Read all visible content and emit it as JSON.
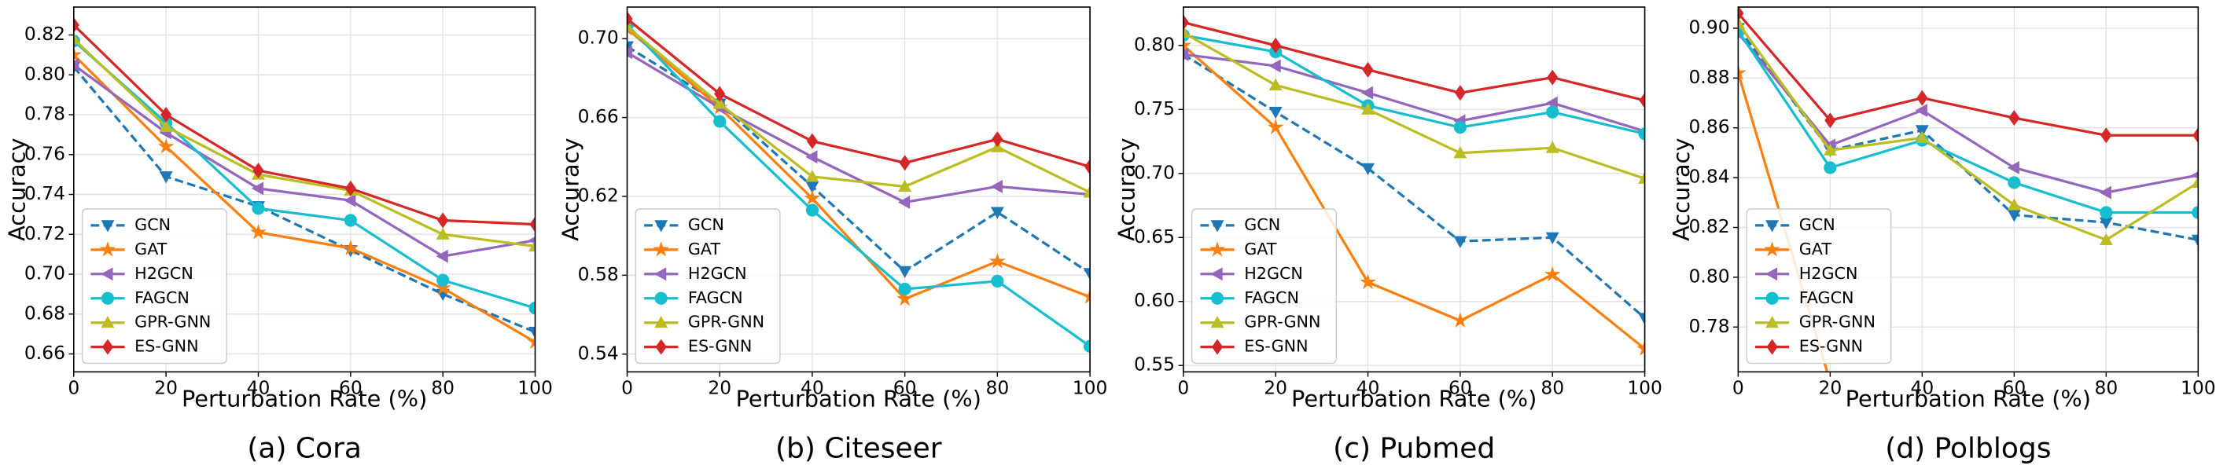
{
  "chart_data": [
    {
      "type": "line",
      "caption": "(a) Cora",
      "xlabel": "Perturbation Rate (%)",
      "ylabel": "Accuracy",
      "x": [
        0,
        20,
        40,
        60,
        80,
        100
      ],
      "xlim": [
        0,
        100
      ],
      "xticks": [
        0,
        20,
        40,
        60,
        80,
        100
      ],
      "ylim": [
        0.651,
        0.834
      ],
      "yticks": [
        0.66,
        0.68,
        {
          "value": 0.7,
          "label": "0.70"
        },
        0.72,
        0.74,
        0.76,
        0.78,
        {
          "value": 0.8,
          "label": "0.80"
        },
        0.82
      ],
      "grid": true,
      "legend": "lower left",
      "series": [
        {
          "name": "GCN",
          "color": "#1f77b4",
          "marker": "v",
          "dashed": true,
          "values": [
            0.804,
            0.749,
            0.734,
            0.712,
            0.69,
            0.671
          ]
        },
        {
          "name": "GAT",
          "color": "#ff7f0e",
          "marker": "*",
          "dashed": false,
          "values": [
            0.81,
            0.764,
            0.721,
            0.713,
            0.693,
            0.666
          ]
        },
        {
          "name": "H2GCN",
          "color": "#9467bd",
          "marker": "<",
          "dashed": false,
          "values": [
            0.805,
            0.771,
            0.743,
            0.737,
            0.709,
            0.717
          ]
        },
        {
          "name": "FAGCN",
          "color": "#17becf",
          "marker": "o",
          "dashed": false,
          "values": [
            0.817,
            0.776,
            0.733,
            0.727,
            0.697,
            0.683
          ]
        },
        {
          "name": "GPR-GNN",
          "color": "#bcbd22",
          "marker": "^",
          "dashed": false,
          "values": [
            0.818,
            0.774,
            0.75,
            0.742,
            0.72,
            0.714
          ]
        },
        {
          "name": "ES-GNN",
          "color": "#d62728",
          "marker": "D",
          "dashed": false,
          "values": [
            0.825,
            0.78,
            0.752,
            0.743,
            0.727,
            0.725
          ]
        }
      ]
    },
    {
      "type": "line",
      "caption": "(b) Citeseer",
      "xlabel": "Perturbation Rate (%)",
      "ylabel": "Accuracy",
      "x": [
        0,
        20,
        40,
        60,
        80,
        100
      ],
      "xlim": [
        0,
        100
      ],
      "xticks": [
        0,
        20,
        40,
        60,
        80,
        100
      ],
      "ylim": [
        0.531,
        0.716
      ],
      "yticks": [
        0.54,
        0.58,
        0.62,
        0.66,
        {
          "value": 0.7,
          "label": "0.70"
        }
      ],
      "grid": true,
      "legend": "lower left",
      "series": [
        {
          "name": "GCN",
          "color": "#1f77b4",
          "marker": "v",
          "dashed": true,
          "values": [
            0.696,
            0.667,
            0.625,
            0.582,
            0.612,
            0.581
          ]
        },
        {
          "name": "GAT",
          "color": "#ff7f0e",
          "marker": "*",
          "dashed": false,
          "values": [
            0.705,
            0.665,
            0.619,
            0.568,
            0.587,
            0.569
          ]
        },
        {
          "name": "H2GCN",
          "color": "#9467bd",
          "marker": "<",
          "dashed": false,
          "values": [
            0.693,
            0.665,
            0.64,
            0.617,
            0.625,
            0.621
          ]
        },
        {
          "name": "FAGCN",
          "color": "#17becf",
          "marker": "o",
          "dashed": false,
          "values": [
            0.707,
            0.658,
            0.613,
            0.573,
            0.577,
            0.544
          ]
        },
        {
          "name": "GPR-GNN",
          "color": "#bcbd22",
          "marker": "^",
          "dashed": false,
          "values": [
            0.706,
            0.667,
            0.63,
            0.625,
            0.645,
            0.622
          ]
        },
        {
          "name": "ES-GNN",
          "color": "#d62728",
          "marker": "D",
          "dashed": false,
          "values": [
            0.71,
            0.672,
            0.648,
            0.637,
            0.649,
            0.635
          ]
        }
      ]
    },
    {
      "type": "line",
      "caption": "(c) Pubmed",
      "xlabel": "Perturbation Rate (%)",
      "ylabel": "Accuracy",
      "x": [
        0,
        20,
        40,
        60,
        80,
        100
      ],
      "xlim": [
        0,
        100
      ],
      "xticks": [
        0,
        20,
        40,
        60,
        80,
        100
      ],
      "ylim": [
        0.545,
        0.83
      ],
      "yticks": [
        0.55,
        {
          "value": 0.6,
          "label": "0.60"
        },
        0.65,
        {
          "value": 0.7,
          "label": "0.70"
        },
        0.75,
        {
          "value": 0.8,
          "label": "0.80"
        }
      ],
      "grid": true,
      "legend": "lower left",
      "series": [
        {
          "name": "GCN",
          "color": "#1f77b4",
          "marker": "v",
          "dashed": true,
          "values": [
            0.793,
            0.748,
            0.704,
            0.647,
            0.65,
            0.587
          ]
        },
        {
          "name": "GAT",
          "color": "#ff7f0e",
          "marker": "*",
          "dashed": false,
          "values": [
            0.8,
            0.736,
            0.615,
            0.585,
            0.621,
            0.563
          ]
        },
        {
          "name": "H2GCN",
          "color": "#9467bd",
          "marker": "<",
          "dashed": false,
          "values": [
            0.793,
            0.784,
            0.763,
            0.741,
            0.755,
            0.733
          ]
        },
        {
          "name": "FAGCN",
          "color": "#17becf",
          "marker": "o",
          "dashed": false,
          "values": [
            0.808,
            0.795,
            0.753,
            0.736,
            0.748,
            0.731
          ]
        },
        {
          "name": "GPR-GNN",
          "color": "#bcbd22",
          "marker": "^",
          "dashed": false,
          "values": [
            0.81,
            0.769,
            0.75,
            0.716,
            0.72,
            0.696
          ]
        },
        {
          "name": "ES-GNN",
          "color": "#d62728",
          "marker": "D",
          "dashed": false,
          "values": [
            0.818,
            0.8,
            0.781,
            0.763,
            0.775,
            0.757
          ]
        }
      ]
    },
    {
      "type": "line",
      "caption": "(d) Polblogs",
      "xlabel": "Perturbation Rate (%)",
      "ylabel": "Accuracy",
      "x": [
        0,
        20,
        40,
        60,
        80,
        100
      ],
      "xlim": [
        0,
        100
      ],
      "xticks": [
        0,
        20,
        40,
        60,
        80,
        100
      ],
      "ylim": [
        0.762,
        0.9085
      ],
      "yticks": [
        0.78,
        {
          "value": 0.8,
          "label": "0.80"
        },
        0.82,
        0.84,
        0.86,
        0.88,
        {
          "value": 0.9,
          "label": "0.90"
        }
      ],
      "grid": true,
      "legend": "lower left",
      "series": [
        {
          "name": "GCN",
          "color": "#1f77b4",
          "marker": "v",
          "dashed": true,
          "values": [
            0.9,
            0.851,
            0.859,
            0.825,
            0.822,
            0.815
          ]
        },
        {
          "name": "GAT",
          "color": "#ff7f0e",
          "marker": "*",
          "dashed": false,
          "values": [
            0.882,
            0.758,
            null,
            null,
            null,
            null
          ]
        },
        {
          "name": "H2GCN",
          "color": "#9467bd",
          "marker": "<",
          "dashed": false,
          "values": [
            0.898,
            0.853,
            0.867,
            0.844,
            0.834,
            0.841
          ]
        },
        {
          "name": "FAGCN",
          "color": "#17becf",
          "marker": "o",
          "dashed": false,
          "values": [
            0.899,
            0.844,
            0.855,
            0.838,
            0.826,
            0.826
          ]
        },
        {
          "name": "GPR-GNN",
          "color": "#bcbd22",
          "marker": "^",
          "dashed": false,
          "values": [
            0.902,
            0.851,
            0.856,
            0.829,
            0.815,
            0.838
          ]
        },
        {
          "name": "ES-GNN",
          "color": "#d62728",
          "marker": "D",
          "dashed": false,
          "values": [
            0.906,
            0.863,
            0.872,
            0.864,
            0.857,
            0.857
          ]
        }
      ]
    }
  ]
}
